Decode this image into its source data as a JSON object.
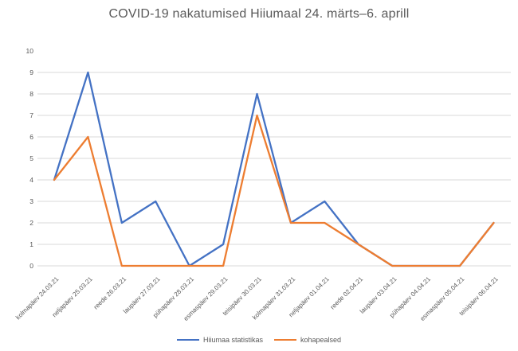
{
  "title": "COVID-19 nakatumised Hiiumaal 24. märts–6. aprill",
  "colors": {
    "title_text": "#595959",
    "axis_text": "#595959",
    "gridline": "#d9d9d9",
    "background": "#ffffff",
    "series_blue": "#4472C4",
    "series_orange": "#ED7D31"
  },
  "legend": {
    "items": [
      {
        "label": "Hiiumaa statistikas",
        "color": "#4472C4"
      },
      {
        "label": "kohapealsed",
        "color": "#ED7D31"
      }
    ]
  },
  "chart_data": {
    "type": "line",
    "title": "COVID-19 nakatumised Hiiumaal 24. märts–6. aprill",
    "categories": [
      "kolmapäev 24.03.21",
      "neljapäev 25.03.21",
      "reede 26.03.21",
      "laupäev 27.03.21",
      "pühapäev 28.03.21",
      "esmaspäev 29.03.21",
      "teisipäev 30.03.21",
      "kolmapäev 31.03.21",
      "neljapäev 01.04.21",
      "reede 02.04.21",
      "laupäev 03.04.21",
      "pühapäev 04.04.21",
      "esmaspäev 05.04.21",
      "teisipäev 06.04.21"
    ],
    "series": [
      {
        "name": "Hiiumaa statistikas",
        "color": "#4472C4",
        "values": [
          4,
          9,
          2,
          3,
          0,
          1,
          8,
          2,
          3,
          1,
          0,
          0,
          0,
          2
        ]
      },
      {
        "name": "kohapealsed",
        "color": "#ED7D31",
        "values": [
          4,
          6,
          0,
          0,
          0,
          0,
          7,
          2,
          2,
          1,
          0,
          0,
          0,
          2
        ]
      }
    ],
    "xlabel": "",
    "ylabel": "",
    "ylim": [
      0,
      10
    ],
    "yticks": [
      0,
      1,
      2,
      3,
      4,
      5,
      6,
      7,
      8,
      9,
      10
    ],
    "gridline_max_with_line": 9,
    "grid": true,
    "legend_position": "bottom"
  }
}
